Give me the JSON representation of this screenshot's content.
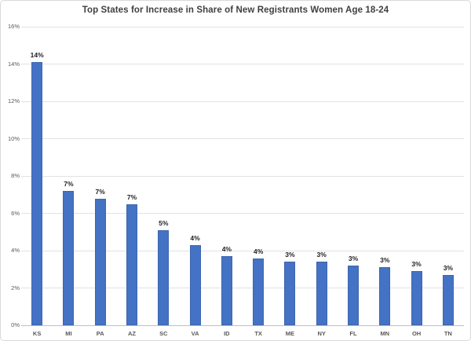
{
  "chart": {
    "title": "Top States for Increase in Share of New Registrants Women Age 18-24"
  },
  "chart_data": {
    "type": "bar",
    "title": "Top States for Increase in Share of New Registrants Women Age 18-24",
    "categories": [
      "KS",
      "MI",
      "PA",
      "AZ",
      "SC",
      "VA",
      "ID",
      "TX",
      "ME",
      "NY",
      "FL",
      "MN",
      "OH",
      "TN"
    ],
    "values": [
      14.1,
      7.2,
      6.8,
      6.5,
      5.1,
      4.3,
      3.7,
      3.6,
      3.4,
      3.4,
      3.2,
      3.1,
      2.9,
      2.7
    ],
    "data_labels": [
      "14%",
      "7%",
      "7%",
      "7%",
      "5%",
      "4%",
      "4%",
      "4%",
      "3%",
      "3%",
      "3%",
      "3%",
      "3%",
      "3%"
    ],
    "xlabel": "",
    "ylabel": "",
    "ylim": [
      0,
      16
    ],
    "y_tick_step": 2,
    "y_tick_labels": [
      "0%",
      "2%",
      "4%",
      "6%",
      "8%",
      "10%",
      "12%",
      "14%",
      "16%"
    ],
    "grid": true,
    "legend": false,
    "colors": {
      "bar_fill": "#4472C4",
      "bar_edge": "#3D66AE",
      "gridline": "#E2E2E2",
      "axis_line": "#BFBFBF",
      "axis_label": "#595959",
      "data_label": "#1F1F1F",
      "title": "#404040",
      "background": "#FFFFFF",
      "border": "#D9D9D9"
    }
  }
}
